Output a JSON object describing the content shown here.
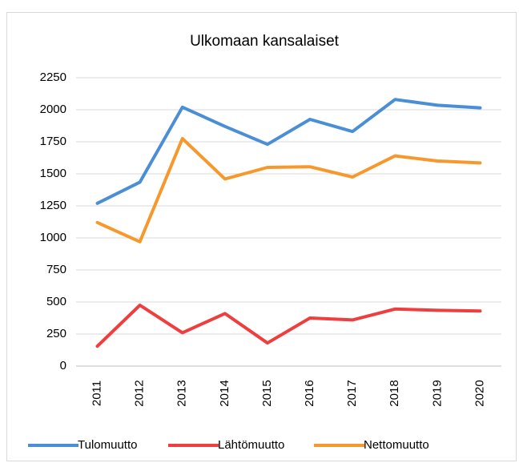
{
  "chart_data": {
    "type": "line",
    "title": "Ulkomaan kansalaiset",
    "categories": [
      "2011",
      "2012",
      "2013",
      "2014",
      "2015",
      "2016",
      "2017",
      "2018",
      "2019",
      "2020"
    ],
    "series": [
      {
        "name": "Tulomuutto",
        "color": "#4a8fd6",
        "values": [
          1270,
          1435,
          2020,
          1870,
          1730,
          1925,
          1830,
          2080,
          2035,
          2015
        ]
      },
      {
        "name": "Lähtömuutto",
        "color": "#ef3e3e",
        "values": [
          155,
          475,
          260,
          410,
          180,
          375,
          360,
          445,
          435,
          430
        ]
      },
      {
        "name": "Nettomuutto",
        "color": "#f7982d",
        "values": [
          1120,
          970,
          1775,
          1460,
          1550,
          1555,
          1475,
          1640,
          1600,
          1585
        ]
      }
    ],
    "ylim": [
      0,
      2250
    ],
    "yticks": [
      0,
      250,
      500,
      750,
      1000,
      1250,
      1500,
      1750,
      2000,
      2250
    ],
    "grid": true,
    "legend": "bottom"
  }
}
